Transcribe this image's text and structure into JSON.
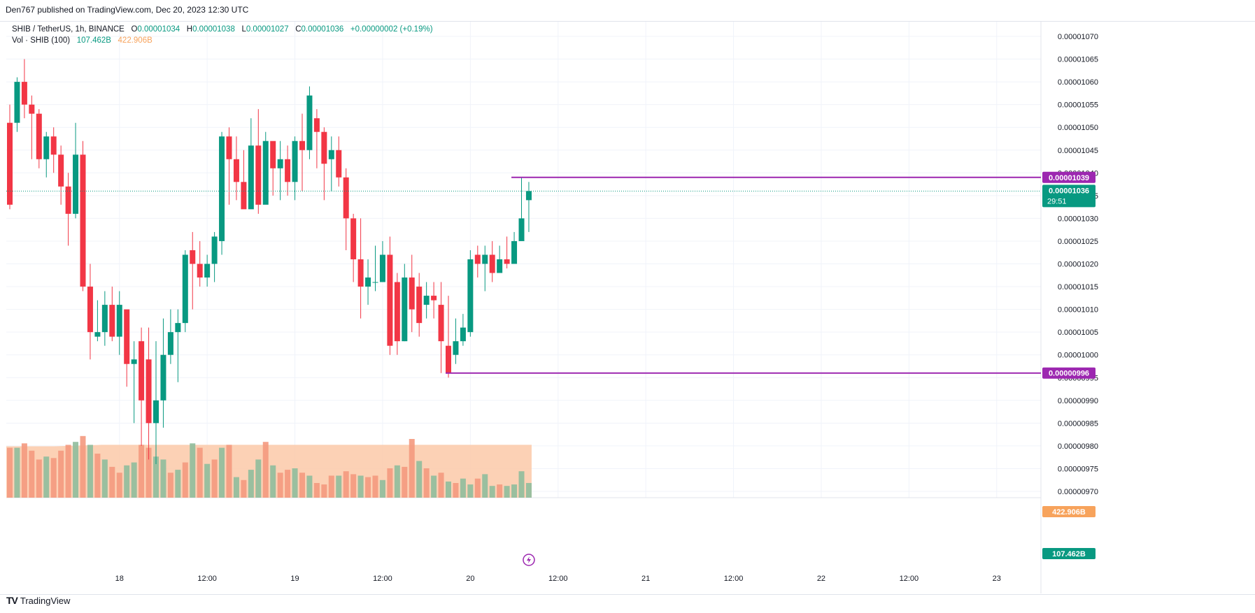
{
  "header": {
    "published": "Den767 published on TradingView.com, Dec 20, 2023 12:30 UTC"
  },
  "legend": {
    "symbol": "SHIB / TetherUS, 1h, BINANCE",
    "open_label": "O",
    "open": "0.00001034",
    "high_label": "H",
    "high": "0.00001038",
    "low_label": "L",
    "low": "0.00001027",
    "close_label": "C",
    "close": "0.00001036",
    "change": "+0.00000002 (+0.19%)",
    "vol_label": "Vol · SHIB (100)",
    "vol_value": "107.462B",
    "vol_ma": "422.906B"
  },
  "price_labels": {
    "level_high": "0.00001039",
    "level_low": "0.00000996",
    "last_price": "0.00001036",
    "countdown": "29:51",
    "vol_ma": "422.906B",
    "vol_last": "107.462B"
  },
  "footer": {
    "brand": "TradingView"
  },
  "colors": {
    "up": "#089981",
    "down": "#f23645",
    "level": "#9c27b0",
    "vol_ma_fill": "#fcc9a8",
    "vol_ma_label": "#f7a35c"
  },
  "chart_data": {
    "type": "candlestick",
    "symbol": "SHIB/USDT",
    "interval": "1h",
    "ylim": [
      9.7e-06,
      1.07e-05
    ],
    "y_ticks": [
      "0.00000970",
      "0.00000975",
      "0.00000980",
      "0.00000985",
      "0.00000990",
      "0.00000995",
      "0.00001000",
      "0.00001005",
      "0.00001010",
      "0.00001015",
      "0.00001020",
      "0.00001025",
      "0.00001030",
      "0.00001035",
      "0.00001040",
      "0.00001045",
      "0.00001050",
      "0.00001055",
      "0.00001060",
      "0.00001065",
      "0.00001070"
    ],
    "x_ticks": [
      {
        "label": "18",
        "bar": 15
      },
      {
        "label": "12:00",
        "bar": 27
      },
      {
        "label": "19",
        "bar": 39
      },
      {
        "label": "12:00",
        "bar": 51
      },
      {
        "label": "20",
        "bar": 63
      },
      {
        "label": "12:00",
        "bar": 75
      },
      {
        "label": "21",
        "bar": 87
      },
      {
        "label": "12:00",
        "bar": 99
      },
      {
        "label": "22",
        "bar": 111
      },
      {
        "label": "12:00",
        "bar": 123
      },
      {
        "label": "23",
        "bar": 135
      }
    ],
    "total_slots": 147,
    "levels": [
      {
        "price": 1.039e-05,
        "from_bar": 69
      },
      {
        "price": 9.96e-06,
        "from_bar": 60
      }
    ],
    "last_price": 1.036e-05,
    "candles": [
      [
        1051,
        1033,
        1055,
        1032
      ],
      [
        1051,
        1060,
        1061,
        1049
      ],
      [
        1060,
        1055,
        1065,
        1052
      ],
      [
        1055,
        1053,
        1057,
        1043
      ],
      [
        1053,
        1043,
        1054,
        1041
      ],
      [
        1043,
        1048,
        1049,
        1039
      ],
      [
        1048,
        1044,
        1050,
        1040
      ],
      [
        1044,
        1037,
        1046,
        1033
      ],
      [
        1037,
        1031,
        1040,
        1024
      ],
      [
        1031,
        1044,
        1051,
        1030
      ],
      [
        1044,
        1015,
        1047,
        1014
      ],
      [
        1015,
        1005,
        1020,
        1999
      ],
      [
        1004,
        1005,
        1012,
        1003
      ],
      [
        1005,
        1011,
        1014,
        1002
      ],
      [
        1011,
        1004,
        1015,
        1003
      ],
      [
        1004,
        1011,
        1014,
        1000
      ],
      [
        1010,
        998,
        1008,
        993
      ],
      [
        998,
        999,
        1003,
        1985
      ],
      [
        1003,
        1990,
        1006,
        1980
      ],
      [
        1999,
        1985,
        1006,
        1977
      ],
      [
        1985,
        990,
        1003,
        1976
      ],
      [
        1990,
        1000,
        1008,
        1984
      ],
      [
        1000,
        1005,
        1010,
        1998
      ],
      [
        1005,
        1007,
        1010,
        1994
      ],
      [
        1007,
        1022,
        1023,
        1005
      ],
      [
        1023,
        1020,
        1027,
        1010
      ],
      [
        1020,
        1017,
        1025,
        1015
      ],
      [
        1017,
        1020,
        1022,
        1015
      ],
      [
        1020,
        1026,
        1027,
        1016
      ],
      [
        1025,
        1048,
        1049,
        1022
      ],
      [
        1048,
        1043,
        1050,
        1033
      ],
      [
        1043,
        1038,
        1048,
        1034
      ],
      [
        1038,
        1032,
        1045,
        1035
      ],
      [
        1032,
        1046,
        1052,
        1034
      ],
      [
        1046,
        1033,
        1054,
        1031
      ],
      [
        1033,
        1047,
        1049,
        1034
      ],
      [
        1047,
        1041,
        1044,
        1035
      ],
      [
        1041,
        1043,
        1047,
        1034
      ],
      [
        1043,
        1038,
        1046,
        1035
      ],
      [
        1038,
        1047,
        1048,
        1034
      ],
      [
        1047,
        1045,
        1053,
        1036
      ],
      [
        1045,
        1057,
        1059,
        1043
      ],
      [
        1052,
        1049,
        1054,
        1041
      ],
      [
        1049,
        1042,
        1050,
        1034
      ],
      [
        1043,
        1045,
        1048,
        1036
      ],
      [
        1045,
        1039,
        1048,
        1037
      ],
      [
        1039,
        1030,
        1041,
        1023
      ],
      [
        1030,
        1021,
        1031,
        1016
      ],
      [
        1021,
        1015,
        1030,
        1008
      ],
      [
        1015,
        1017,
        1021,
        1011
      ],
      [
        1016,
        1016,
        1024,
        1014
      ],
      [
        1016,
        1022,
        1025,
        1018
      ],
      [
        1022,
        1002,
        1026,
        1000
      ],
      [
        1016,
        1003,
        1018,
        1000
      ],
      [
        1003,
        1017,
        1020,
        1003
      ],
      [
        1017,
        1010,
        1022,
        1005
      ],
      [
        1015,
        1007,
        1018,
        1004
      ],
      [
        1011,
        1013,
        1016,
        1008
      ],
      [
        1013,
        1012,
        1016,
        1008
      ],
      [
        1011,
        1003,
        1016,
        1996
      ],
      [
        1002,
        1996,
        1013,
        1995
      ],
      [
        1000,
        1003,
        1008,
        1998
      ],
      [
        1003,
        1006,
        1009,
        1002
      ],
      [
        1005,
        1021,
        1023,
        1004
      ],
      [
        1022,
        1020,
        1024,
        1017
      ],
      [
        1020,
        1022,
        1024,
        1014
      ],
      [
        1022,
        1018,
        1025,
        1016
      ],
      [
        1018,
        1021,
        1024,
        1018
      ],
      [
        1021,
        1020,
        1026,
        1019
      ],
      [
        1020,
        1025,
        1027,
        1020
      ],
      [
        1025,
        1030,
        1039,
        1029
      ],
      [
        1034,
        1036,
        1038,
        1027
      ]
    ],
    "volumes": [
      [
        0.34,
        "down"
      ],
      [
        0.34,
        "up"
      ],
      [
        0.37,
        "down"
      ],
      [
        0.32,
        "down"
      ],
      [
        0.26,
        "down"
      ],
      [
        0.28,
        "up"
      ],
      [
        0.27,
        "down"
      ],
      [
        0.32,
        "down"
      ],
      [
        0.36,
        "down"
      ],
      [
        0.38,
        "up"
      ],
      [
        0.42,
        "down"
      ],
      [
        0.36,
        "up"
      ],
      [
        0.3,
        "down"
      ],
      [
        0.26,
        "up"
      ],
      [
        0.21,
        "down"
      ],
      [
        0.17,
        "down"
      ],
      [
        0.22,
        "up"
      ],
      [
        0.24,
        "up"
      ],
      [
        0.36,
        "down"
      ],
      [
        0.34,
        "down"
      ],
      [
        0.28,
        "up"
      ],
      [
        0.26,
        "up"
      ],
      [
        0.17,
        "down"
      ],
      [
        0.19,
        "up"
      ],
      [
        0.24,
        "down"
      ],
      [
        0.37,
        "up"
      ],
      [
        0.34,
        "down"
      ],
      [
        0.23,
        "up"
      ],
      [
        0.26,
        "down"
      ],
      [
        0.34,
        "up"
      ],
      [
        0.36,
        "down"
      ],
      [
        0.14,
        "up"
      ],
      [
        0.12,
        "down"
      ],
      [
        0.19,
        "up"
      ],
      [
        0.26,
        "up"
      ],
      [
        0.38,
        "down"
      ],
      [
        0.22,
        "up"
      ],
      [
        0.17,
        "down"
      ],
      [
        0.19,
        "down"
      ],
      [
        0.2,
        "up"
      ],
      [
        0.17,
        "down"
      ],
      [
        0.15,
        "up"
      ],
      [
        0.1,
        "down"
      ],
      [
        0.09,
        "down"
      ],
      [
        0.15,
        "down"
      ],
      [
        0.15,
        "up"
      ],
      [
        0.18,
        "down"
      ],
      [
        0.16,
        "down"
      ],
      [
        0.15,
        "up"
      ],
      [
        0.14,
        "down"
      ],
      [
        0.15,
        "down"
      ],
      [
        0.12,
        "up"
      ],
      [
        0.2,
        "down"
      ],
      [
        0.22,
        "up"
      ],
      [
        0.21,
        "down"
      ],
      [
        0.4,
        "down"
      ],
      [
        0.25,
        "up"
      ],
      [
        0.2,
        "down"
      ],
      [
        0.15,
        "up"
      ],
      [
        0.17,
        "down"
      ],
      [
        0.11,
        "up"
      ],
      [
        0.1,
        "down"
      ],
      [
        0.13,
        "up"
      ],
      [
        0.09,
        "up"
      ],
      [
        0.13,
        "down"
      ],
      [
        0.16,
        "up"
      ],
      [
        0.08,
        "up"
      ],
      [
        0.09,
        "down"
      ],
      [
        0.08,
        "up"
      ],
      [
        0.09,
        "up"
      ],
      [
        0.18,
        "up"
      ],
      [
        0.1,
        "up"
      ]
    ],
    "vol_ma": [
      0.35,
      0.35,
      0.36,
      0.36,
      0.36,
      0.36,
      0.36,
      0.36,
      0.36,
      0.36,
      0.36,
      0.36
    ]
  }
}
